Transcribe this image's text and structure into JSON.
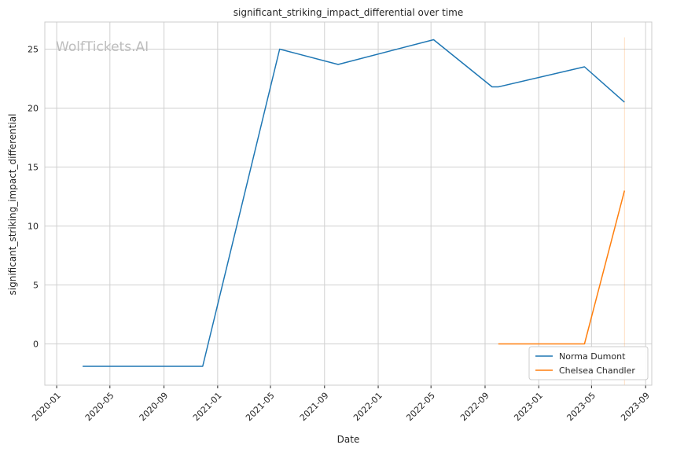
{
  "chart_data": {
    "type": "line",
    "title": "significant_striking_impact_differential over time",
    "xlabel": "Date",
    "ylabel": "significant_striking_impact_differential",
    "watermark": "WolfTickets.AI",
    "x_ticks": [
      "2020-01",
      "2020-05",
      "2020-09",
      "2021-01",
      "2021-05",
      "2021-09",
      "2022-01",
      "2022-05",
      "2022-09",
      "2023-01",
      "2023-05",
      "2023-09"
    ],
    "y_ticks": [
      0,
      5,
      10,
      15,
      20,
      25
    ],
    "xlim": [
      "2019-12-05",
      "2023-09-15"
    ],
    "ylim": [
      -3.5,
      27.3
    ],
    "grid": true,
    "legend_position": "lower-right",
    "series": [
      {
        "name": "Norma Dumont",
        "color": "#1f77b4",
        "points": [
          {
            "x": "2020-02-29",
            "y": -1.9
          },
          {
            "x": "2020-11-28",
            "y": -1.9
          },
          {
            "x": "2021-05-22",
            "y": 25.0
          },
          {
            "x": "2021-10-02",
            "y": 23.7
          },
          {
            "x": "2022-05-07",
            "y": 25.8
          },
          {
            "x": "2022-09-17",
            "y": 21.8
          },
          {
            "x": "2022-10-01",
            "y": 21.8
          },
          {
            "x": "2023-04-15",
            "y": 23.5
          },
          {
            "x": "2023-07-15",
            "y": 20.5
          }
        ]
      },
      {
        "name": "Chelsea Chandler",
        "color": "#ff7f0e",
        "points": [
          {
            "x": "2022-10-01",
            "y": 0.0
          },
          {
            "x": "2023-04-15",
            "y": 0.0
          },
          {
            "x": "2023-07-15",
            "y": 13.0
          }
        ]
      }
    ],
    "vertical_marker": {
      "x": "2023-07-15",
      "color": "#ff7f0e",
      "y_range": [
        -3.5,
        26.0
      ]
    }
  }
}
